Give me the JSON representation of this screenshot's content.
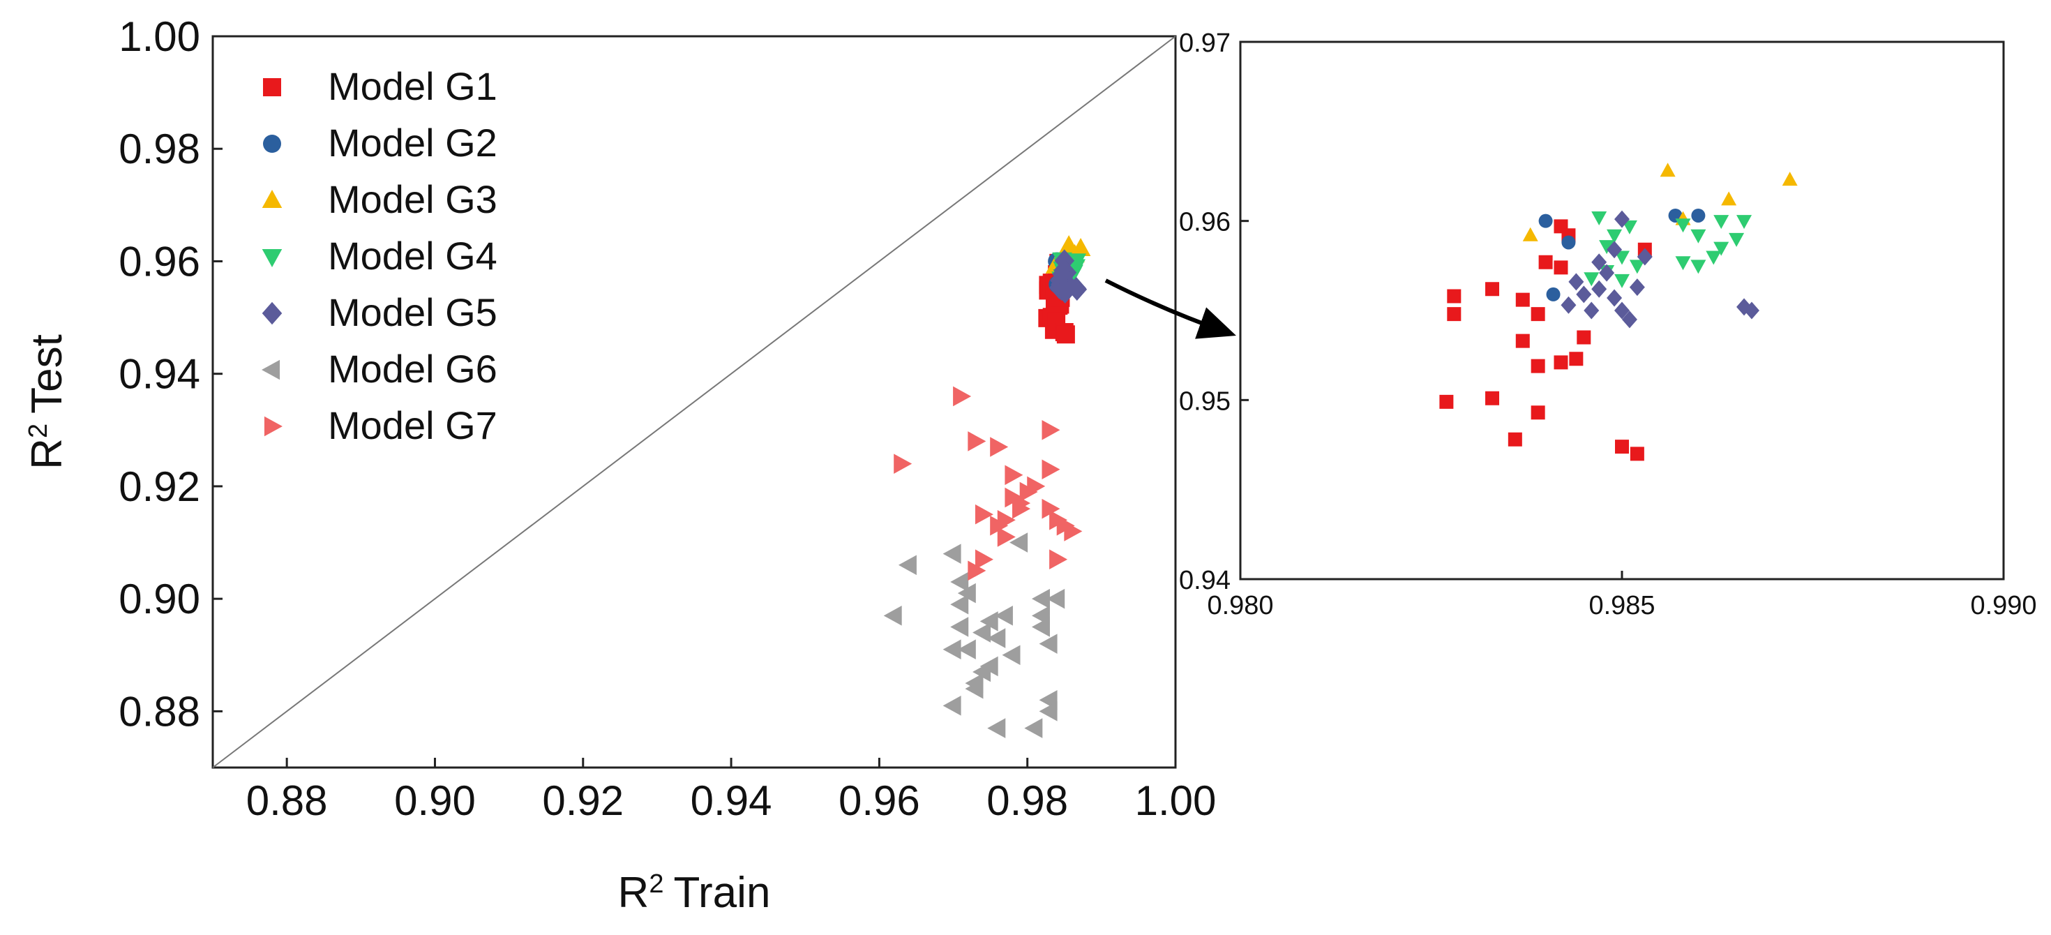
{
  "chart_data": [
    {
      "type": "scatter",
      "panel": "main",
      "xlabel": "Train",
      "ylabel": "Test",
      "axis_prefix": "R",
      "axis_superscript": "2",
      "xlim": [
        0.87,
        1.0
      ],
      "ylim": [
        0.87,
        1.0
      ],
      "x_ticks": [
        "0.88",
        "0.90",
        "0.92",
        "0.94",
        "0.96",
        "0.98",
        "1.00"
      ],
      "y_ticks": [
        "0.88",
        "0.90",
        "0.92",
        "0.94",
        "0.96",
        "0.98",
        "1.00"
      ],
      "grid": false,
      "diagonal_line": true,
      "legend_position": "top-left",
      "series": [
        {
          "name": "Model G1",
          "marker": "square",
          "color": "#e8191c",
          "points": [
            [
              0.9828,
              0.9558
            ],
            [
              0.9828,
              0.9548
            ],
            [
              0.9833,
              0.9562
            ],
            [
              0.9837,
              0.9556
            ],
            [
              0.9839,
              0.9548
            ],
            [
              0.9837,
              0.9533
            ],
            [
              0.9839,
              0.9519
            ],
            [
              0.9842,
              0.9521
            ],
            [
              0.9844,
              0.9523
            ],
            [
              0.9845,
              0.9535
            ],
            [
              0.984,
              0.9577
            ],
            [
              0.9842,
              0.9574
            ],
            [
              0.9842,
              0.9597
            ],
            [
              0.9843,
              0.9592
            ],
            [
              0.9827,
              0.9499
            ],
            [
              0.9833,
              0.9501
            ],
            [
              0.9836,
              0.9478
            ],
            [
              0.9839,
              0.9493
            ],
            [
              0.985,
              0.9474
            ],
            [
              0.9852,
              0.947
            ],
            [
              0.9853,
              0.9584
            ]
          ]
        },
        {
          "name": "Model G2",
          "marker": "circle",
          "color": "#2b5f9e",
          "points": [
            [
              0.984,
              0.96
            ],
            [
              0.9843,
              0.9588
            ],
            [
              0.9841,
              0.9559
            ],
            [
              0.9857,
              0.9603
            ],
            [
              0.986,
              0.9603
            ]
          ]
        },
        {
          "name": "Model G3",
          "marker": "triangle-up",
          "color": "#f5b800",
          "points": [
            [
              0.9838,
              0.9592
            ],
            [
              0.9856,
              0.9628
            ],
            [
              0.9864,
              0.9612
            ],
            [
              0.9872,
              0.9623
            ],
            [
              0.9858,
              0.9601
            ]
          ]
        },
        {
          "name": "Model G4",
          "marker": "triangle-down",
          "color": "#2ecc71",
          "points": [
            [
              0.9847,
              0.9602
            ],
            [
              0.9849,
              0.9592
            ],
            [
              0.9851,
              0.9597
            ],
            [
              0.9848,
              0.9586
            ],
            [
              0.985,
              0.958
            ],
            [
              0.9852,
              0.9575
            ],
            [
              0.9848,
              0.9572
            ],
            [
              0.9846,
              0.9568
            ],
            [
              0.985,
              0.9567
            ],
            [
              0.9858,
              0.9598
            ],
            [
              0.986,
              0.9592
            ],
            [
              0.9863,
              0.96
            ],
            [
              0.9865,
              0.959
            ],
            [
              0.9858,
              0.9577
            ],
            [
              0.986,
              0.9575
            ],
            [
              0.9862,
              0.958
            ],
            [
              0.9863,
              0.9585
            ],
            [
              0.9866,
              0.96
            ]
          ]
        },
        {
          "name": "Model G5",
          "marker": "diamond",
          "color": "#5b5b9a",
          "points": [
            [
              0.9843,
              0.9553
            ],
            [
              0.9844,
              0.9566
            ],
            [
              0.9846,
              0.955
            ],
            [
              0.9847,
              0.9562
            ],
            [
              0.9848,
              0.9571
            ],
            [
              0.9849,
              0.9584
            ],
            [
              0.985,
              0.9601
            ],
            [
              0.9849,
              0.9557
            ],
            [
              0.9851,
              0.9545
            ],
            [
              0.9852,
              0.9563
            ],
            [
              0.9853,
              0.958
            ],
            [
              0.9845,
              0.9559
            ],
            [
              0.9847,
              0.9577
            ],
            [
              0.9866,
              0.9552
            ],
            [
              0.9867,
              0.955
            ],
            [
              0.985,
              0.955
            ]
          ]
        },
        {
          "name": "Model G6",
          "marker": "triangle-left",
          "color": "#9e9e9e",
          "points": [
            [
              0.962,
              0.897
            ],
            [
              0.964,
              0.906
            ],
            [
              0.97,
              0.908
            ],
            [
              0.971,
              0.903
            ],
            [
              0.971,
              0.899
            ],
            [
              0.971,
              0.895
            ],
            [
              0.972,
              0.891
            ],
            [
              0.973,
              0.885
            ],
            [
              0.972,
              0.901
            ],
            [
              0.974,
              0.894
            ],
            [
              0.974,
              0.887
            ],
            [
              0.975,
              0.896
            ],
            [
              0.976,
              0.893
            ],
            [
              0.977,
              0.897
            ],
            [
              0.97,
              0.891
            ],
            [
              0.97,
              0.881
            ],
            [
              0.976,
              0.877
            ],
            [
              0.978,
              0.89
            ],
            [
              0.979,
              0.91
            ],
            [
              0.981,
              0.877
            ],
            [
              0.982,
              0.9
            ],
            [
              0.982,
              0.895
            ],
            [
              0.983,
              0.892
            ],
            [
              0.983,
              0.882
            ],
            [
              0.983,
              0.88
            ],
            [
              0.984,
              0.9
            ],
            [
              0.975,
              0.888
            ],
            [
              0.973,
              0.884
            ],
            [
              0.982,
              0.897
            ]
          ]
        },
        {
          "name": "Model G7",
          "marker": "triangle-right",
          "color": "#f06464",
          "points": [
            [
              0.963,
              0.924
            ],
            [
              0.971,
              0.936
            ],
            [
              0.973,
              0.928
            ],
            [
              0.974,
              0.907
            ],
            [
              0.974,
              0.915
            ],
            [
              0.976,
              0.913
            ],
            [
              0.977,
              0.911
            ],
            [
              0.976,
              0.927
            ],
            [
              0.978,
              0.918
            ],
            [
              0.978,
              0.922
            ],
            [
              0.979,
              0.916
            ],
            [
              0.98,
              0.919
            ],
            [
              0.981,
              0.92
            ],
            [
              0.983,
              0.93
            ],
            [
              0.983,
              0.923
            ],
            [
              0.983,
              0.916
            ],
            [
              0.984,
              0.914
            ],
            [
              0.984,
              0.907
            ],
            [
              0.985,
              0.913
            ],
            [
              0.986,
              0.912
            ],
            [
              0.973,
              0.905
            ],
            [
              0.977,
              0.914
            ],
            [
              0.979,
              0.917
            ]
          ]
        }
      ]
    },
    {
      "type": "scatter",
      "panel": "inset",
      "xlim": [
        0.98,
        0.99
      ],
      "ylim": [
        0.94,
        0.97
      ],
      "x_ticks": [
        "0.980",
        "0.985",
        "0.990"
      ],
      "y_ticks": [
        "0.94",
        "0.95",
        "0.96",
        "0.97"
      ],
      "grid": false,
      "zoom_of": "main",
      "series_source": "same as main panel (G1–G5 visible)"
    }
  ]
}
